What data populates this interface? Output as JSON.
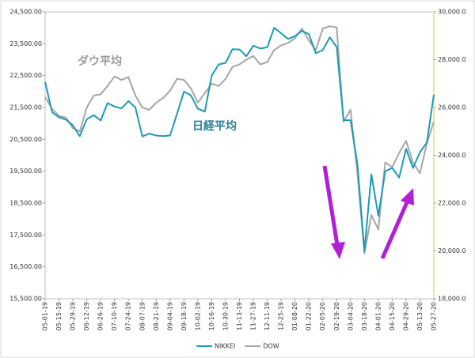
{
  "chart_data": {
    "type": "line",
    "categories": [
      "05-01-19",
      null,
      "05-15-19",
      null,
      "05-29-19",
      null,
      "06-12-19",
      null,
      "06-26-19",
      null,
      "07-10-19",
      null,
      "07-24-19",
      null,
      "08-07-19",
      null,
      "08-21-19",
      null,
      "09-04-19",
      null,
      "09-18-19",
      null,
      "10-02-19",
      null,
      "10-16-19",
      null,
      "10-30-19",
      null,
      "11-13-19",
      null,
      "11-27-19",
      null,
      "12-11-19",
      null,
      "12-25-19",
      null,
      "01-08-20",
      null,
      "01-22-20",
      null,
      "02-05-20",
      null,
      "02-19-20",
      null,
      "03-04-20",
      null,
      "03-18-20",
      null,
      "04-01-20",
      null,
      "04-15-20",
      null,
      "04-29-20",
      null,
      "05-13-20",
      null,
      "05-27-20"
    ],
    "series": [
      {
        "name": "NIKKEI",
        "color": "#1b9bb5",
        "values": [
          22300,
          21350,
          21190,
          21120,
          20940,
          20600,
          21130,
          21260,
          21090,
          21640,
          21530,
          21470,
          21700,
          21500,
          20590,
          20680,
          20620,
          20600,
          20620,
          21300,
          22000,
          21880,
          21460,
          21370,
          22500,
          22850,
          22900,
          23330,
          23320,
          23110,
          23440,
          23350,
          23390,
          24000,
          23830,
          23650,
          23740,
          23900,
          23800,
          23200,
          23300,
          23700,
          23400,
          21100,
          21100,
          19700,
          17000,
          19400,
          18100,
          19500,
          19600,
          19300,
          20200,
          19600,
          20100,
          20400,
          21900
        ]
      },
      {
        "name": "DOW",
        "color": "#a6a6a6",
        "axis": "y2",
        "values": [
          26430,
          25940,
          25650,
          25580,
          25130,
          25000,
          26000,
          26500,
          26550,
          26900,
          27300,
          27150,
          27270,
          26500,
          26000,
          25900,
          26200,
          26400,
          26700,
          27200,
          27150,
          26800,
          26200,
          26600,
          27000,
          26900,
          27200,
          27700,
          27800,
          28000,
          28160,
          27800,
          27900,
          28400,
          28600,
          28700,
          28900,
          29300,
          28800,
          28400,
          29300,
          29400,
          29350,
          25400,
          25900,
          23200,
          19900,
          21500,
          20900,
          23700,
          23500,
          24100,
          24600,
          23700,
          23250,
          24500,
          25400
        ]
      }
    ],
    "ylim": [
      15500,
      24500
    ],
    "yticks": [
      {
        "value": 15500,
        "label": "15,500.00"
      },
      {
        "value": 16500,
        "label": "16,500.00"
      },
      {
        "value": 17500,
        "label": "17,500.00"
      },
      {
        "value": 18500,
        "label": "18,500.00"
      },
      {
        "value": 19500,
        "label": "19,500.00"
      },
      {
        "value": 20500,
        "label": "20,500.00"
      },
      {
        "value": 21500,
        "label": "21,500.00"
      },
      {
        "value": 22500,
        "label": "22,500.00"
      },
      {
        "value": 23500,
        "label": "23,500.00"
      },
      {
        "value": 24500,
        "label": "24,500.00"
      }
    ],
    "y2lim": [
      18000,
      30000
    ],
    "y2ticks": [
      {
        "value": 18000,
        "label": "18,000.0"
      },
      {
        "value": 20000,
        "label": "20,000.0"
      },
      {
        "value": 22000,
        "label": "22,000.0"
      },
      {
        "value": 24000,
        "label": "24,000.0"
      },
      {
        "value": 26000,
        "label": "26,000.0"
      },
      {
        "value": 28000,
        "label": "28,000.0"
      },
      {
        "value": 30000,
        "label": "30,000.0"
      }
    ],
    "annotations": [
      {
        "text": "ダウ平均"
      },
      {
        "text": "日経平均"
      }
    ],
    "grid": false,
    "legend": "bottom"
  }
}
